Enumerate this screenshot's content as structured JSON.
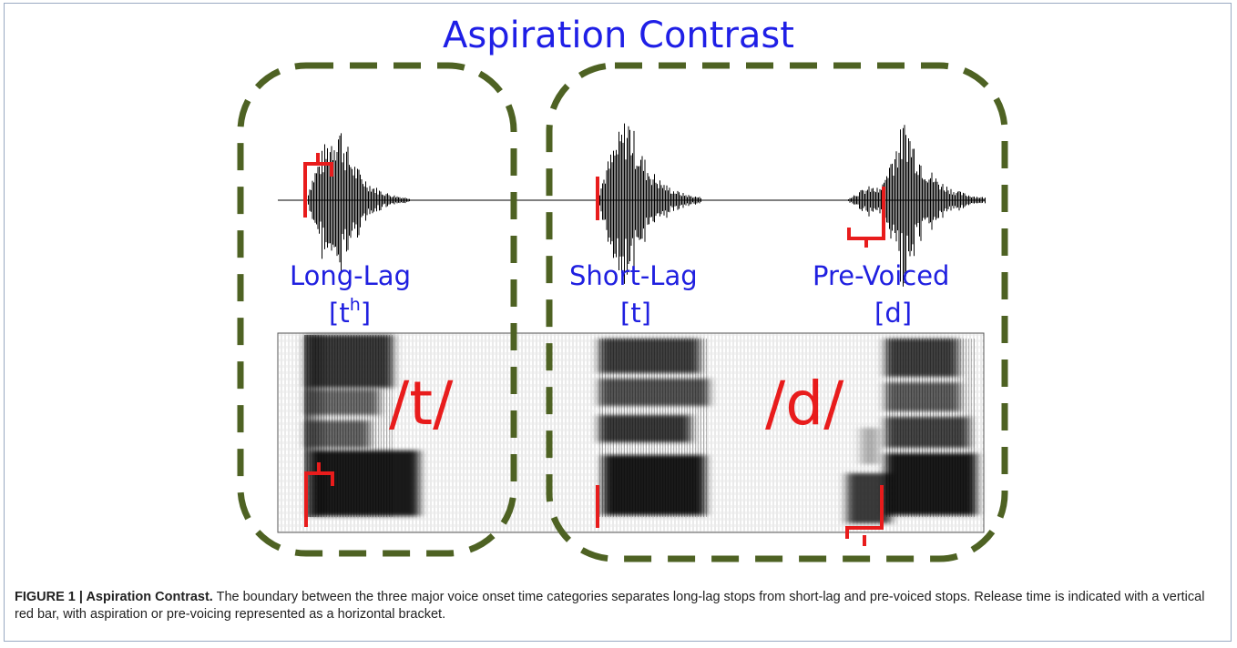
{
  "figure": {
    "title": "Aspiration Contrast",
    "categories": [
      {
        "label": "Long-Lag",
        "symbol_base": "[t",
        "symbol_sup": "h",
        "symbol_end": "]"
      },
      {
        "label": "Short-Lag",
        "symbol": "[t]"
      },
      {
        "label": "Pre-Voiced",
        "symbol": "[d]"
      }
    ],
    "phonemes": [
      "/t/",
      "/d/"
    ],
    "colors": {
      "title_text": "#1f1fe6",
      "dash_border": "#4e6223",
      "release_marker": "#e81c1c",
      "waveform": "#000000",
      "spectrogram": "#000000"
    }
  },
  "caption": {
    "head": "FIGURE 1 | Aspiration Contrast.",
    "body": " The boundary between the three major voice onset time categories separates long-lag stops from short-lag and pre-voiced stops. Release time is indicated with a vertical red bar, with aspiration or pre-voicing represented as a horizontal bracket."
  }
}
